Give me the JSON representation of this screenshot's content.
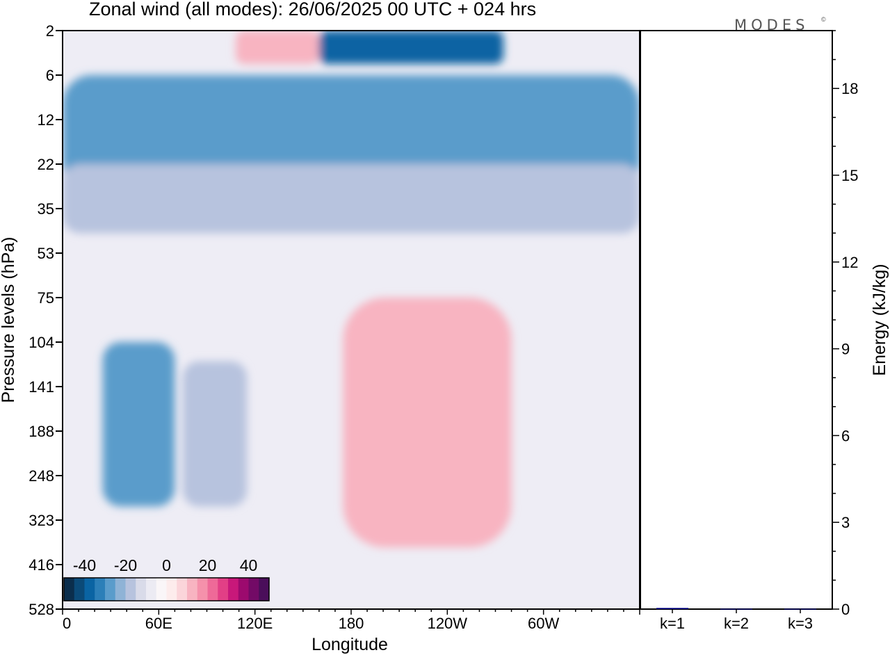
{
  "chart_data": [
    {
      "type": "heatmap",
      "title": "Zonal wind (all modes):  26/06/2025  00 UTC  + 024 hrs",
      "xlabel": "Longitude",
      "ylabel": "Pressure levels (hPa)",
      "x_tick_labels": [
        "0",
        "60E",
        "120E",
        "180",
        "120W",
        "60W"
      ],
      "x_tick_degrees": [
        0,
        60,
        120,
        180,
        240,
        300
      ],
      "xlim_degrees": [
        0,
        360
      ],
      "y_levels": [
        "2",
        "6",
        "12",
        "22",
        "35",
        "53",
        "75",
        "104",
        "141",
        "188",
        "248",
        "323",
        "416",
        "528"
      ],
      "y_axis_inverted": true,
      "colorbar": {
        "tick_labels": [
          "-40",
          "-20",
          "0",
          "20",
          "40"
        ],
        "tick_values": [
          -40,
          -20,
          0,
          20,
          40
        ],
        "range": [
          -50,
          50
        ],
        "levels": 20,
        "colors": [
          "#0b2e4c",
          "#0b4a78",
          "#0a64a3",
          "#2c7fb8",
          "#5a9ccb",
          "#8fb3d6",
          "#b7c3de",
          "#d9dbe9",
          "#ecebf3",
          "#faf6f8",
          "#fdecec",
          "#fbd5da",
          "#f8b4c1",
          "#f591ab",
          "#ee6a98",
          "#e23f86",
          "#c8187a",
          "#9c0a6e",
          "#730a66",
          "#4a0e5a"
        ]
      },
      "features": [
        {
          "desc": "stratospheric easterly band",
          "lon": [
            0,
            360
          ],
          "p_top": 6,
          "p_bottom": 30,
          "value": -30
        },
        {
          "desc": "lower-stratosphere easterlies",
          "lon": [
            0,
            360
          ],
          "p_top": 22,
          "p_bottom": 45,
          "value": -20
        },
        {
          "desc": "upper easterly core",
          "lon": [
            160,
            275
          ],
          "p_top": 2,
          "p_bottom": 5,
          "value": -40
        },
        {
          "desc": "upper westerly patch",
          "lon": [
            108,
            160
          ],
          "p_top": 2,
          "p_bottom": 5,
          "value": 10
        },
        {
          "desc": "tropospheric easterly core",
          "lon": [
            25,
            70
          ],
          "p_top": 104,
          "p_bottom": 300,
          "value": -30
        },
        {
          "desc": "tropospheric easterly core",
          "lon": [
            75,
            115
          ],
          "p_top": 120,
          "p_bottom": 300,
          "value": -20
        },
        {
          "desc": "tropospheric westerlies",
          "lon": [
            175,
            280
          ],
          "p_top": 75,
          "p_bottom": 380,
          "value": 10
        }
      ]
    },
    {
      "type": "bar",
      "categories": [
        "k=1",
        "k=2",
        "k=3"
      ],
      "values": [
        0.04,
        0.01,
        0.01
      ],
      "ylabel": "Energy (kJ/kg)",
      "ylim": [
        0,
        20
      ],
      "y_tick_labels": [
        "0",
        "3",
        "6",
        "9",
        "12",
        "15",
        "18"
      ],
      "y_tick_values": [
        0,
        3,
        6,
        9,
        12,
        15,
        18
      ],
      "bar_color": "#000080"
    }
  ],
  "brand": "MODES",
  "brand_mark": "©"
}
